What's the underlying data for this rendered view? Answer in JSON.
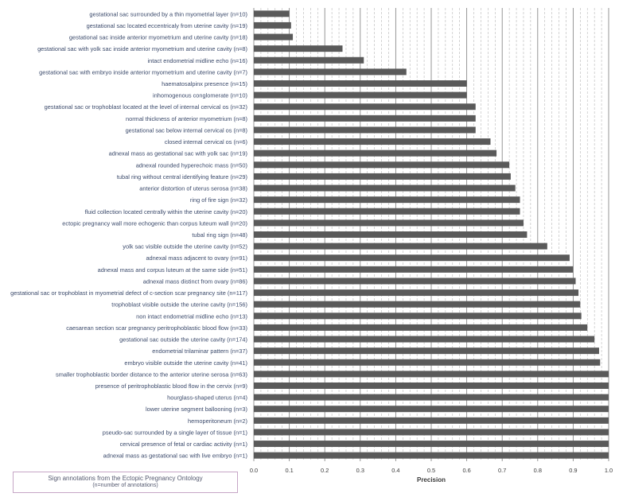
{
  "chart_data": {
    "type": "bar",
    "orientation": "horizontal",
    "categories": [
      "gestational sac surrounded by a thin myometrial layer (n=10)",
      "gestational sac located eccentricaly from uterine cavity (n=19)",
      "gestational sac inside anterior myometrium and uterine cavity (n=18)",
      "gestational sac with yolk sac inside anterior myometrium and uterine cavity (n=8)",
      "intact endometrial midline echo (n=16)",
      "gestational sac with embryo inside anterior myometrium and uterine cavity  (n=7)",
      "haematosalpinx presence (n=15)",
      "inhomogenous conglomerate (n=10)",
      "gestational sac or trophoblast located at the level of internal cervical os (n=32)",
      "normal thickness of anterior myometrium (n=8)",
      "gestational sac below internal cervical os (n=8)",
      "closed internal cervical os (n=6)",
      "adnexal mass as gestational sac with yolk sac (n=19)",
      "adnexal rounded hyperechoic mass (n=50)",
      "tubal ring without central identifying feature (n=29)",
      "anterior distortion of uterus serosa (n=38)",
      "ring of fire sign (n=32)",
      "fluid collection located centrally within the uterine cavity (n=20)",
      "ectopic pregnancy wall more echogenic than corpus luteum wall (n=20)",
      "tubal ring sign (n=48)",
      "yolk sac visible outside the uterine cavity (n=52)",
      "adnexal mass adjacent to ovary (n=91)",
      "adnexal mass and corpus luteum at the same side (n=51)",
      "adnexal mass distinct from ovary (n=86)",
      "gestational sac or trophoblast in myometrial defect of c-section scar pregnancy site (n=117)",
      "trophoblast visible outside the uterine cavity (n=156)",
      "non intact endometrial midline echo (n=13)",
      "caesarean section scar pregnancy peritrophoblastic blood flow (n=33)",
      "gestational sac outside the uterine cavity (n=174)",
      "endometrial trilaminar pattern (n=37)",
      "embryo visible outside the uterine cavity (n=41)",
      "smaller trophoblastic border distance to the anterior uterine serosa (n=63)",
      "presence of peritrophoblastic blood flow in the cervix (n=9)",
      "hourglass-shaped uterus (n=4)",
      "lower uterine segment ballooning  (n=3)",
      "hemoperitoneum  (n=2)",
      "pseudo-sac surrounded by a single layer of tissue  (n=1)",
      "cervical presence of fetal or cardiac activity (n=1)",
      "adnexal mass as gestational sac with live embryo (n=1)"
    ],
    "values": [
      0.1,
      0.105,
      0.11,
      0.25,
      0.31,
      0.43,
      0.6,
      0.6,
      0.625,
      0.625,
      0.625,
      0.667,
      0.684,
      0.72,
      0.724,
      0.737,
      0.75,
      0.75,
      0.76,
      0.77,
      0.827,
      0.89,
      0.9,
      0.907,
      0.915,
      0.92,
      0.923,
      0.94,
      0.96,
      0.973,
      0.976,
      1.0,
      1.0,
      1.0,
      1.0,
      1.0,
      1.0,
      1.0,
      1.0
    ],
    "xlabel": "Precision",
    "xlim": [
      0,
      1
    ],
    "xticks": [
      "0.0",
      "0.1",
      "0.2",
      "0.3",
      "0.4",
      "0.5",
      "0.6",
      "0.7",
      "0.8",
      "0.9",
      "1.0"
    ],
    "grid": "vertical major and minor",
    "colors": {
      "bar": "#5a5a5a",
      "grid_major": "#8a8a8a",
      "grid_minor": "#b8b8b8",
      "label": "#3b4a6b",
      "legend_border": "#c6a6c6"
    }
  },
  "legend": {
    "line1": "Sign annotations from the Ectopic Pregnancy Ontology",
    "line2": "(n=number of annotations)"
  }
}
